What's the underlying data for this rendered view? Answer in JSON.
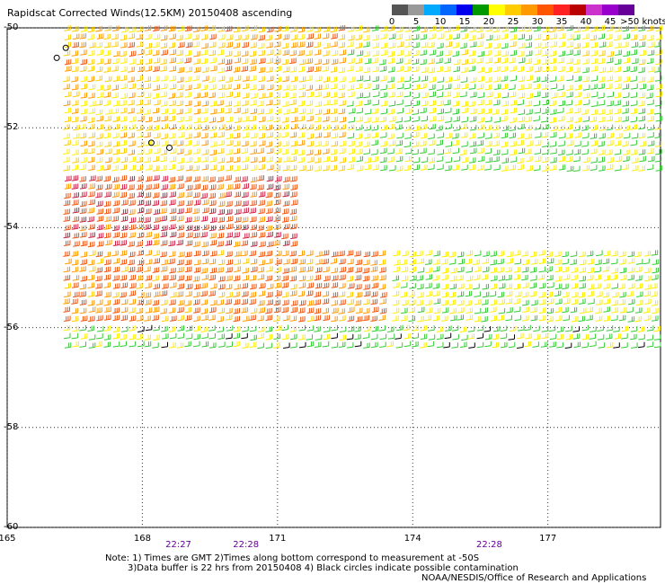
{
  "header": {
    "title": "Rapidscat Corrected Winds(12.5KM) 20150408 ascending"
  },
  "legend": {
    "colors": [
      "#555555",
      "#999999",
      "#00aaff",
      "#0066ff",
      "#0000ee",
      "#009900",
      "#ffff00",
      "#ffcc00",
      "#ff9900",
      "#ff5500",
      "#ff2222",
      "#bb0000",
      "#cc33cc",
      "#9900cc",
      "#660099"
    ],
    "labels": [
      "0",
      "5",
      "10",
      "15",
      "20",
      "25",
      "30",
      "35",
      "40",
      "45",
      ">50 knots"
    ]
  },
  "chart_data": {
    "type": "wind-barb map",
    "title": "Rapidscat Corrected Winds(12.5KM) 20150408 ascending",
    "xlim": [
      165,
      179.5
    ],
    "ylim": [
      -60,
      -50
    ],
    "x_ticks": [
      "165",
      "168",
      "171",
      "174",
      "177"
    ],
    "y_ticks": [
      "-50",
      "-52",
      "-54",
      "-56",
      "-58",
      "-60"
    ],
    "grid": "dotted",
    "time_labels": [
      {
        "lon": 168.8,
        "text": "22:27"
      },
      {
        "lon": 170.3,
        "text": "22:28"
      },
      {
        "lon": 175.7,
        "text": "22:28"
      }
    ],
    "swath_bands": [
      {
        "lat": [
          -50.0,
          -51.0
        ],
        "lon": [
          166.2,
          172.5
        ],
        "speed_kn": 28
      },
      {
        "lat": [
          -50.0,
          -51.0
        ],
        "lon": [
          172.5,
          179.5
        ],
        "speed_kn": 22
      },
      {
        "lat": [
          -51.0,
          -53.0
        ],
        "lon": [
          166.2,
          172.5
        ],
        "speed_kn": 26
      },
      {
        "lat": [
          -51.0,
          -53.0
        ],
        "lon": [
          172.5,
          179.5
        ],
        "speed_kn": 20
      },
      {
        "lat": [
          -53.0,
          -54.5
        ],
        "lon": [
          166.2,
          171.5
        ],
        "speed_kn": 34
      },
      {
        "lat": [
          -54.5,
          -56.0
        ],
        "lon": [
          166.2,
          173.5
        ],
        "speed_kn": 31
      },
      {
        "lat": [
          -54.5,
          -56.0
        ],
        "lon": [
          173.5,
          179.5
        ],
        "speed_kn": 21
      },
      {
        "lat": [
          -56.0,
          -56.4
        ],
        "lon": [
          166.2,
          179.5
        ],
        "speed_kn": 18
      }
    ]
  },
  "notes": {
    "line1": "Note: 1) Times are GMT 2)Times along bottom correspond to measurement at -50S",
    "line2": "3)Data buffer is 22 hrs from 20150408 4) Black circles indicate possible contamination",
    "line3": "NOAA/NESDIS/Office of Research and Applications"
  }
}
